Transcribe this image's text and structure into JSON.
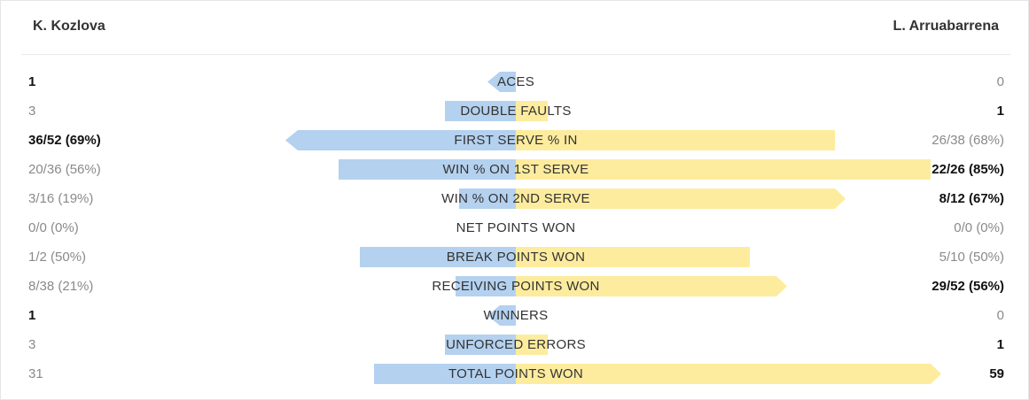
{
  "players": {
    "left": "K. Kozlova",
    "right": "L. Arruabarrena"
  },
  "colors": {
    "left_bar": "#b4d1ef",
    "right_bar": "#fdec9e",
    "leader_text": "#111111",
    "muted_text": "#8a8a8a"
  },
  "chart_data": {
    "type": "bar",
    "orientation": "diverging-horizontal",
    "categories": [
      "ACES",
      "DOUBLE FAULTS",
      "FIRST SERVE % IN",
      "WIN % ON 1ST SERVE",
      "WIN % ON 2ND SERVE",
      "NET POINTS WON",
      "BREAK POINTS WON",
      "RECEIVING POINTS WON",
      "WINNERS",
      "UNFORCED ERRORS",
      "TOTAL POINTS WON"
    ],
    "series": [
      {
        "name": "K. Kozlova",
        "labels": [
          "1",
          "3",
          "36/52 (69%)",
          "20/36 (56%)",
          "3/16 (19%)",
          "0/0 (0%)",
          "1/2 (50%)",
          "8/38 (21%)",
          "1",
          "3",
          "31"
        ],
        "values": [
          1,
          3,
          69,
          56,
          19,
          0,
          50,
          21,
          1,
          3,
          31
        ]
      },
      {
        "name": "L. Arruabarrena",
        "labels": [
          "0",
          "1",
          "26/38 (68%)",
          "22/26 (85%)",
          "8/12 (67%)",
          "0/0 (0%)",
          "5/10 (50%)",
          "29/52 (56%)",
          "0",
          "1",
          "59"
        ],
        "values": [
          0,
          1,
          68,
          85,
          67,
          0,
          50,
          56,
          0,
          1,
          59
        ]
      }
    ],
    "leader": [
      "left",
      "right",
      "left",
      "right",
      "right",
      null,
      null,
      "right",
      "left",
      "right",
      "right"
    ],
    "bar_fraction": {
      "left": [
        0.08,
        0.2,
        0.65,
        0.5,
        0.16,
        0,
        0.44,
        0.17,
        0.08,
        0.2,
        0.4
      ],
      "right": [
        0.0,
        0.06,
        0.6,
        0.78,
        0.62,
        0,
        0.44,
        0.51,
        0.0,
        0.06,
        0.8
      ]
    },
    "arrow": {
      "left": [
        true,
        false,
        true,
        false,
        false,
        false,
        false,
        false,
        true,
        false,
        false
      ],
      "right": [
        false,
        false,
        false,
        false,
        true,
        false,
        false,
        true,
        false,
        false,
        true
      ]
    }
  }
}
